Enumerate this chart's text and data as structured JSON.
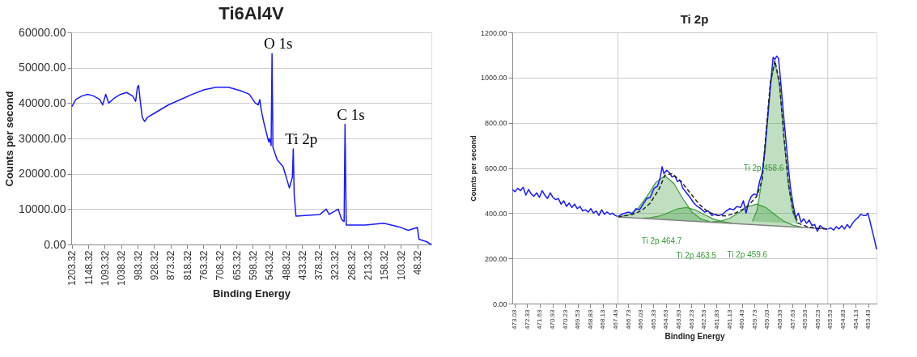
{
  "chart_data": [
    {
      "type": "line",
      "title": "Ti6Al4V",
      "xlabel": "Binding Energy",
      "ylabel": "Counts per second",
      "grid": "y",
      "marker": "none",
      "xlim": [
        1205.32,
        1.32
      ],
      "xticks": [
        1203.32,
        1148.32,
        1093.32,
        1038.32,
        983.32,
        928.32,
        873.32,
        818.32,
        763.32,
        708.32,
        653.32,
        598.32,
        543.32,
        488.32,
        433.32,
        378.32,
        323.32,
        268.32,
        213.32,
        158.32,
        103.32,
        48.32
      ],
      "ylim": [
        0,
        60000
      ],
      "yticks": [
        {
          "value": 0,
          "label": "0.00"
        },
        {
          "value": 10000,
          "label": "10000.00"
        },
        {
          "value": 20000,
          "label": "20000.00"
        },
        {
          "value": 30000,
          "label": "30000.00"
        },
        {
          "value": 40000,
          "label": "40000.00"
        },
        {
          "value": 50000,
          "label": "50000.00"
        },
        {
          "value": 60000,
          "label": "60000.00"
        }
      ],
      "series": [
        {
          "color": "#1a1aff",
          "x": [
            1203,
            1190,
            1170,
            1150,
            1130,
            1110,
            1100,
            1090,
            1080,
            1060,
            1040,
            1020,
            1000,
            990,
            984,
            980,
            975,
            968,
            960,
            950,
            920,
            880,
            840,
            800,
            760,
            720,
            680,
            640,
            610,
            590,
            580,
            575,
            570,
            560,
            545,
            542,
            537,
            534,
            531,
            517,
            497,
            476,
            466,
            463,
            460,
            454,
            425,
            374,
            353,
            343,
            313,
            301,
            293,
            290,
            286,
            222,
            161,
            110,
            79,
            48,
            43,
            18,
            2
          ],
          "values": [
            39000,
            41000,
            42000,
            42500,
            42000,
            41000,
            39500,
            42500,
            40000,
            41500,
            42500,
            43000,
            42000,
            40500,
            44500,
            45000,
            41000,
            36000,
            34800,
            36000,
            37500,
            39500,
            41000,
            42500,
            43800,
            44500,
            44500,
            43500,
            42500,
            40000,
            39500,
            41000,
            38000,
            34000,
            29000,
            30000,
            28000,
            54000,
            27500,
            24000,
            22000,
            16000,
            19000,
            27000,
            14000,
            8000,
            8200,
            8500,
            10000,
            8500,
            10000,
            7000,
            6500,
            34000,
            5500,
            5500,
            6000,
            5000,
            4000,
            4800,
            1500,
            800,
            0
          ]
        }
      ],
      "annotations": [
        {
          "text": "O 1s",
          "x": 534,
          "y": 54000
        },
        {
          "text": "Ti 2p",
          "x": 463,
          "y": 27000
        },
        {
          "text": "C 1s",
          "x": 290,
          "y": 34000
        }
      ]
    },
    {
      "type": "line",
      "title": "Ti 2p",
      "xlabel": "Binding Energy",
      "ylabel": "Counts per second",
      "grid": "y",
      "marker": "none",
      "xlim": [
        473.15,
        452.97
      ],
      "xticks": [
        473.03,
        472.33,
        471.63,
        470.93,
        470.23,
        469.53,
        468.83,
        468.13,
        467.43,
        466.73,
        466.03,
        465.33,
        464.63,
        463.93,
        463.23,
        462.53,
        461.83,
        461.13,
        460.43,
        459.73,
        459.03,
        458.33,
        457.63,
        456.93,
        456.23,
        455.53,
        454.83,
        454.13,
        453.43
      ],
      "ylim": [
        0,
        1200
      ],
      "yticks": [
        {
          "value": 0,
          "label": "0.00"
        },
        {
          "value": 200,
          "label": "200.00"
        },
        {
          "value": 400,
          "label": "400.00"
        },
        {
          "value": 600,
          "label": "600.00"
        },
        {
          "value": 800,
          "label": "800.00"
        },
        {
          "value": 1000,
          "label": "1000.00"
        },
        {
          "value": 1200,
          "label": "1200.00"
        }
      ],
      "series": [
        {
          "type": "area",
          "color": "#3a9a3a",
          "x": [
            467.2,
            466.7,
            466.2,
            465.7,
            465.2,
            464.7,
            464.2,
            463.7,
            463.2,
            462.7,
            462.2
          ],
          "values": [
            385,
            393,
            419,
            473,
            536,
            565,
            532,
            464,
            405,
            374,
            362
          ]
        },
        {
          "type": "area",
          "color": "#3a9a3a",
          "x": [
            466.0,
            465.5,
            465.0,
            464.5,
            464.0,
            463.5,
            463.0,
            462.5,
            462.0,
            461.5,
            461.0
          ],
          "values": [
            378,
            380,
            387,
            402,
            419,
            425,
            414,
            393,
            374,
            362,
            356
          ]
        },
        {
          "type": "area",
          "color": "#3a9a3a",
          "x": [
            462.1,
            461.6,
            461.1,
            460.6,
            460.1,
            459.6,
            459.1,
            458.6,
            458.1,
            457.6,
            457.1
          ],
          "values": [
            361,
            365,
            378,
            402,
            429,
            440,
            425,
            393,
            364,
            347,
            338
          ]
        },
        {
          "type": "area",
          "color": "#3a9a3a",
          "x": [
            459.85,
            459.6,
            459.35,
            459.1,
            458.85,
            458.6,
            458.35,
            458.1,
            457.85,
            457.6,
            457.35
          ],
          "values": [
            364,
            410,
            529,
            738,
            970,
            1070,
            967,
            733,
            522,
            401,
            353
          ]
        },
        {
          "color": "#7f7f7f",
          "x": [
            467.3,
            455.67
          ],
          "values": [
            383,
            330
          ]
        },
        {
          "color": "#1a1aff",
          "x": [
            473.15,
            473.0,
            472.85,
            472.7,
            472.55,
            472.4,
            472.25,
            472.1,
            471.95,
            471.8,
            471.65,
            471.5,
            471.35,
            471.2,
            471.05,
            470.9,
            470.75,
            470.6,
            470.45,
            470.3,
            470.15,
            470.0,
            469.85,
            469.7,
            469.55,
            469.4,
            469.25,
            469.1,
            468.95,
            468.8,
            468.65,
            468.5,
            468.35,
            468.2,
            468.05,
            467.9,
            467.75,
            467.6,
            467.45,
            467.3,
            467.1,
            466.9,
            466.7,
            466.5,
            466.3,
            466.1,
            465.9,
            465.7,
            465.5,
            465.3,
            465.1,
            464.95,
            464.85,
            464.75,
            464.6,
            464.45,
            464.3,
            464.15,
            464.0,
            463.85,
            463.7,
            463.5,
            463.3,
            463.1,
            462.9,
            462.7,
            462.5,
            462.3,
            462.1,
            461.9,
            461.7,
            461.5,
            461.3,
            461.1,
            460.9,
            460.7,
            460.5,
            460.35,
            460.2,
            460.05,
            459.9,
            459.75,
            459.6,
            459.45,
            459.3,
            459.15,
            459.0,
            458.85,
            458.7,
            458.6,
            458.5,
            458.4,
            458.3,
            458.15,
            458.0,
            457.85,
            457.75,
            457.6,
            457.45,
            457.3,
            457.15,
            457.0,
            456.85,
            456.7,
            456.55,
            456.4,
            456.25,
            456.1,
            455.95,
            455.8,
            455.65,
            455.5,
            455.35,
            455.2,
            455.05,
            454.9,
            454.75,
            454.6,
            454.45,
            454.3,
            454.15,
            454.0,
            453.85,
            453.7,
            453.55,
            453.45,
            453.35,
            453.2,
            453.05,
            452.97
          ],
          "values": [
            505,
            495,
            510,
            500,
            515,
            480,
            505,
            485,
            475,
            490,
            470,
            500,
            480,
            465,
            490,
            470,
            460,
            465,
            440,
            455,
            430,
            445,
            425,
            440,
            420,
            430,
            410,
            415,
            405,
            420,
            400,
            410,
            390,
            415,
            395,
            405,
            395,
            400,
            390,
            385,
            395,
            400,
            405,
            395,
            420,
            415,
            440,
            465,
            470,
            510,
            520,
            560,
            605,
            575,
            590,
            580,
            560,
            565,
            540,
            545,
            510,
            490,
            470,
            445,
            430,
            420,
            405,
            410,
            390,
            395,
            390,
            395,
            410,
            420,
            415,
            430,
            425,
            455,
            400,
            450,
            475,
            485,
            480,
            540,
            580,
            680,
            820,
            960,
            1090,
            1080,
            1095,
            1085,
            1000,
            860,
            730,
            600,
            520,
            440,
            380,
            400,
            360,
            375,
            355,
            370,
            345,
            350,
            320,
            345,
            335,
            330,
            330,
            335,
            325,
            340,
            330,
            345,
            330,
            350,
            335,
            355,
            370,
            380,
            395,
            390,
            390,
            400,
            370,
            320,
            270,
            240
          ]
        },
        {
          "color": "#222222",
          "line_style": "dashed",
          "x": [
            467.3,
            466.5,
            466.0,
            465.5,
            465.0,
            464.7,
            464.3,
            463.8,
            463.3,
            462.8,
            462.3,
            461.8,
            461.3,
            460.8,
            460.3,
            460.0,
            459.6,
            459.3,
            459.1,
            458.85,
            458.6,
            458.35,
            458.1,
            457.85,
            457.6,
            457.3,
            456.8,
            456.3,
            455.67
          ],
          "values": [
            383,
            395,
            410,
            445,
            510,
            568,
            575,
            540,
            490,
            440,
            405,
            390,
            388,
            400,
            420,
            440,
            475,
            550,
            750,
            980,
            1075,
            980,
            740,
            530,
            410,
            355,
            340,
            333,
            330
          ]
        }
      ],
      "ref_lines": [
        {
          "axis": "x",
          "value": 467.3,
          "color": "#b5dbb0"
        },
        {
          "axis": "x",
          "value": 455.67,
          "color": "#b5dbb0"
        }
      ],
      "annotations": [
        "Ti 2p 464.7",
        "Ti 2p 463.5",
        "Ti 2p 459.6",
        "Ti 2p 458.6"
      ]
    }
  ]
}
